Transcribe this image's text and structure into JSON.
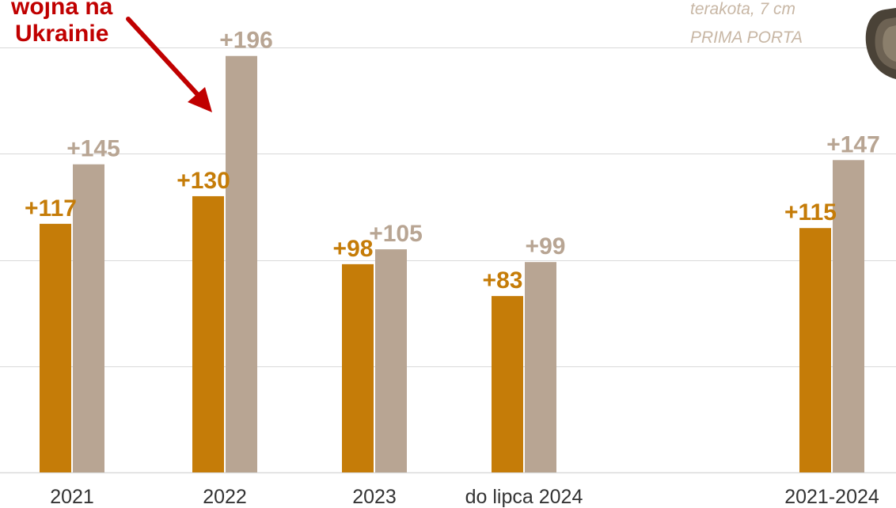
{
  "colors": {
    "series_a": "#c57c08",
    "series_b": "#b8a593",
    "grid": "#d9d9d9",
    "annotation": "#c00000",
    "caption": "#c8b7a5"
  },
  "annotation": {
    "line1": "wojna na",
    "line2": "Ukrainie"
  },
  "caption": {
    "line1": "terakota, 7 cm",
    "line2": "PRIMA PORTA"
  },
  "chart_data": {
    "type": "bar",
    "categories": [
      "2021",
      "2022",
      "2023",
      "do lipca 2024",
      "2021-2024"
    ],
    "series": [
      {
        "values": [
          117,
          130,
          98,
          83,
          115
        ],
        "labels": [
          "+117",
          "+130",
          "+98",
          "+83",
          "+115"
        ]
      },
      {
        "values": [
          145,
          196,
          105,
          99,
          147
        ],
        "labels": [
          "+145",
          "+196",
          "+105",
          "+99",
          "+147"
        ]
      }
    ],
    "ylim": [
      0,
      215
    ],
    "grid": true,
    "legend": "none"
  }
}
